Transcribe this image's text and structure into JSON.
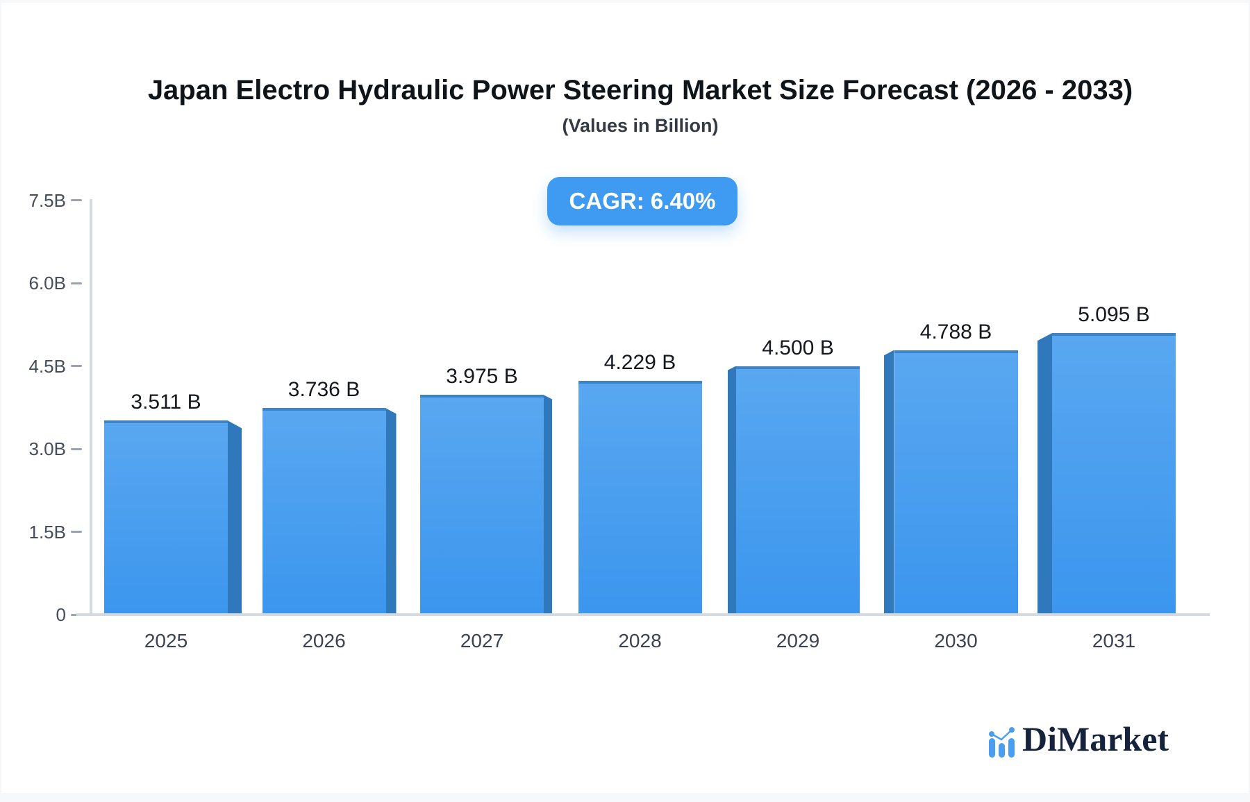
{
  "page": {
    "background": "#f7f8fa",
    "card_background": "#ffffff"
  },
  "header": {
    "title": "Japan Electro Hydraulic Power Steering Market Size Forecast (2026 - 2033)",
    "subtitle": "(Values in Billion)"
  },
  "badge": {
    "label": "CAGR: 6.40%",
    "background": "#3f9bf1",
    "text_color": "#ffffff"
  },
  "chart_data": {
    "type": "bar",
    "title": "Japan Electro Hydraulic Power Steering Market Size Forecast (2026 - 2033)",
    "subtitle": "(Values in Billion)",
    "cagr": "6.40%",
    "unit": "Billion",
    "categories": [
      "2025",
      "2026",
      "2027",
      "2028",
      "2029",
      "2030",
      "2031"
    ],
    "values": [
      3.511,
      3.736,
      3.975,
      4.229,
      4.5,
      4.788,
      5.095
    ],
    "value_labels": [
      "3.511 B",
      "3.736 B",
      "3.975 B",
      "4.229 B",
      "4.500 B",
      "4.788 B",
      "5.095 B"
    ],
    "ylim": [
      0,
      7.5
    ],
    "y_ticks": [
      {
        "value": 0,
        "label": "0"
      },
      {
        "value": 1.5,
        "label": "1.5B"
      },
      {
        "value": 3.0,
        "label": "3.0B"
      },
      {
        "value": 4.5,
        "label": "4.5B"
      },
      {
        "value": 6.0,
        "label": "6.0B"
      },
      {
        "value": 7.5,
        "label": "7.5B"
      }
    ],
    "grid": false,
    "legend": false,
    "colors": {
      "bar_gradient_top": "#59a7f0",
      "bar_gradient_bottom": "#3b96ee",
      "bar_side": "#2e78bb",
      "bar_top_cap": "#3d84c6",
      "axis_line": "#d5d9e0",
      "tick_mark": "#9ba3b0",
      "tick_label": "#454d5a",
      "value_label": "#15181d",
      "category_label": "#3b4252"
    }
  },
  "logo": {
    "text": "DiMarket",
    "icon": "bar-chart-logo-icon",
    "text_color": "#16233d",
    "icon_color": "#4a9ef0"
  }
}
